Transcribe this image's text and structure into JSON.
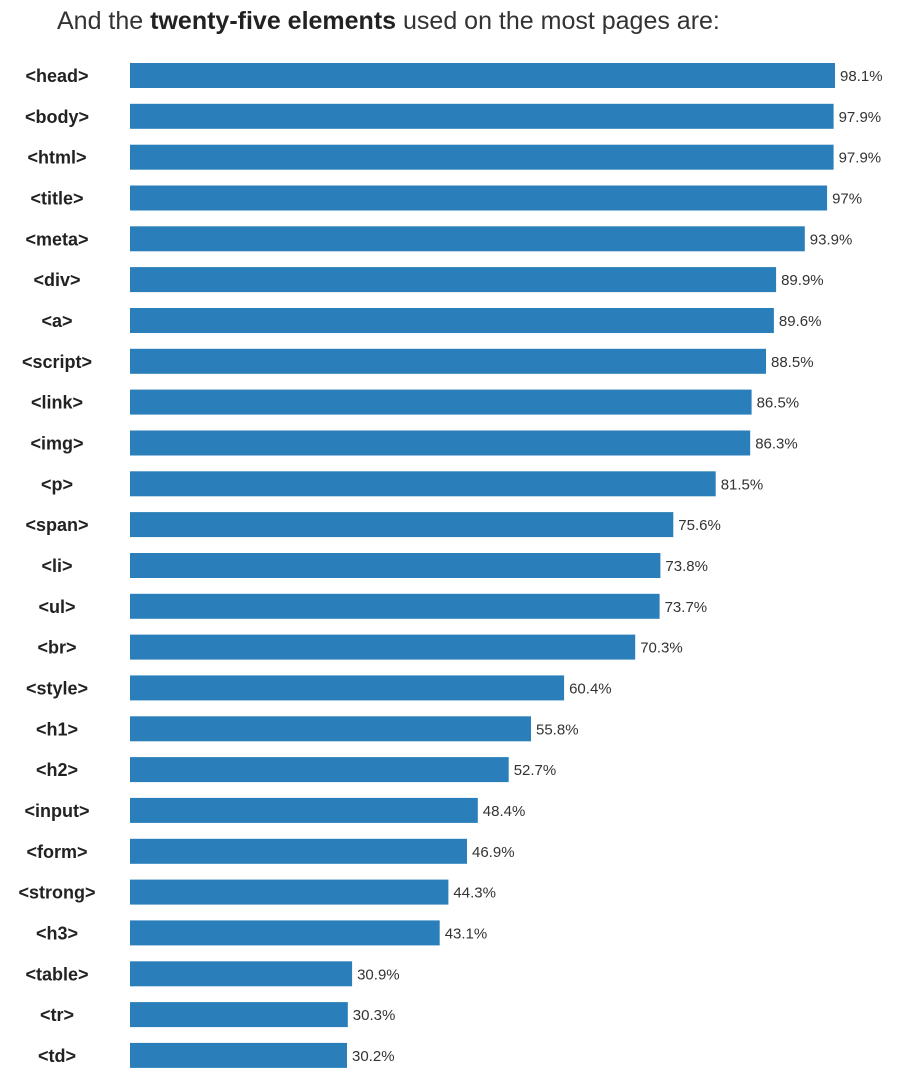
{
  "heading": {
    "prefix": "And the ",
    "emphasis": "twenty-five elements",
    "suffix": " used on the most pages are:"
  },
  "colors": {
    "bar": "#2a7fba"
  },
  "chart_data": {
    "type": "bar",
    "orientation": "horizontal",
    "title": "And the twenty-five elements used on the most pages are:",
    "xlabel": "",
    "ylabel": "",
    "xlim": [
      0,
      100
    ],
    "unit": "%",
    "grid": false,
    "categories": [
      "<head>",
      "<body>",
      "<html>",
      "<title>",
      "<meta>",
      "<div>",
      "<a>",
      "<script>",
      "<link>",
      "<img>",
      "<p>",
      "<span>",
      "<li>",
      "<ul>",
      "<br>",
      "<style>",
      "<h1>",
      "<h2>",
      "<input>",
      "<form>",
      "<strong>",
      "<h3>",
      "<table>",
      "<tr>",
      "<td>"
    ],
    "values": [
      98.1,
      97.9,
      97.9,
      97,
      93.9,
      89.9,
      89.6,
      88.5,
      86.5,
      86.3,
      81.5,
      75.6,
      73.8,
      73.7,
      70.3,
      60.4,
      55.8,
      52.7,
      48.4,
      46.9,
      44.3,
      43.1,
      30.9,
      30.3,
      30.2
    ],
    "value_labels": [
      "98.1%",
      "97.9%",
      "97.9%",
      "97%",
      "93.9%",
      "89.9%",
      "89.6%",
      "88.5%",
      "86.5%",
      "86.3%",
      "81.5%",
      "75.6%",
      "73.8%",
      "73.7%",
      "70.3%",
      "60.4%",
      "55.8%",
      "52.7%",
      "48.4%",
      "46.9%",
      "44.3%",
      "43.1%",
      "30.9%",
      "30.3%",
      "30.2%"
    ]
  }
}
